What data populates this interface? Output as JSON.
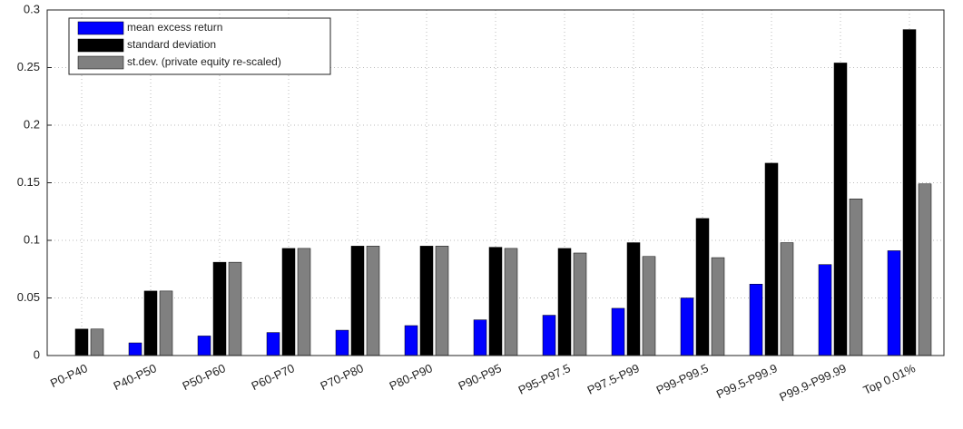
{
  "chart_data": {
    "type": "bar",
    "categories": [
      "P0-P40",
      "P40-P50",
      "P50-P60",
      "P60-P70",
      "P70-P80",
      "P80-P90",
      "P90-P95",
      "P95-P97.5",
      "P97.5-P99",
      "P99-P99.5",
      "P99.5-P99.9",
      "P99.9-P99.99",
      "Top 0.01%"
    ],
    "series": [
      {
        "name": "mean excess return",
        "color": "#0000ff",
        "values": [
          0,
          0.011,
          0.017,
          0.02,
          0.022,
          0.026,
          0.031,
          0.035,
          0.041,
          0.05,
          0.062,
          0.079,
          0.091
        ]
      },
      {
        "name": "standard deviation",
        "color": "#000000",
        "values": [
          0.023,
          0.056,
          0.081,
          0.093,
          0.095,
          0.095,
          0.094,
          0.093,
          0.098,
          0.119,
          0.167,
          0.254,
          0.283
        ]
      },
      {
        "name": "st.dev. (private equity re-scaled)",
        "color": "#808080",
        "values": [
          0.023,
          0.056,
          0.081,
          0.093,
          0.095,
          0.095,
          0.093,
          0.089,
          0.086,
          0.085,
          0.098,
          0.136,
          0.149
        ]
      }
    ],
    "ylim": [
      0,
      0.3
    ],
    "yticks": [
      0,
      0.05,
      0.1,
      0.15,
      0.2,
      0.25,
      0.3
    ],
    "grid": true,
    "legend": "top-left"
  }
}
